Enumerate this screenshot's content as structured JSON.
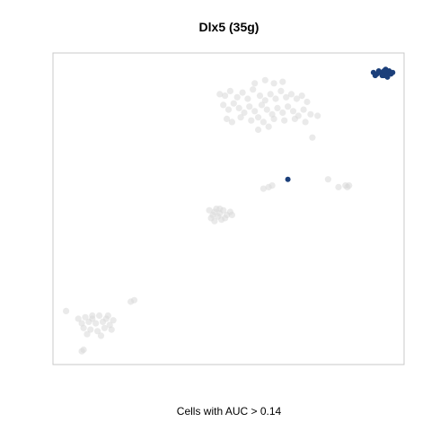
{
  "chart_data": {
    "type": "scatter",
    "title": "Dlx5 (35g)",
    "xlabel": "Cells with AUC > 0.14",
    "ylabel": "",
    "axes_shown": false,
    "grid": false,
    "legend": "none",
    "xlim": [
      0,
      100
    ],
    "ylim": [
      0,
      100
    ],
    "colors": {
      "background_points": "#d9d9d9",
      "highlight_points": "#1b3f7a",
      "frame": "#c8c8c8"
    },
    "series": [
      {
        "values": [
          [
            47.5,
            87.0
          ],
          [
            49.0,
            86.5
          ],
          [
            50.5,
            88.0
          ],
          [
            52.5,
            86.0
          ],
          [
            54.0,
            87.5
          ],
          [
            55.5,
            85.5
          ],
          [
            57.0,
            88.5
          ],
          [
            59.0,
            86.5
          ],
          [
            60.5,
            85.0
          ],
          [
            62.0,
            87.0
          ],
          [
            63.5,
            85.5
          ],
          [
            65.0,
            88.0
          ],
          [
            66.5,
            86.0
          ],
          [
            68.0,
            87.0
          ],
          [
            69.5,
            85.5
          ],
          [
            71.0,
            86.5
          ],
          [
            72.5,
            84.5
          ],
          [
            48.5,
            83.5
          ],
          [
            50.0,
            82.0
          ],
          [
            51.5,
            84.0
          ],
          [
            53.0,
            82.5
          ],
          [
            54.5,
            81.0
          ],
          [
            56.0,
            83.0
          ],
          [
            57.5,
            81.5
          ],
          [
            59.5,
            83.5
          ],
          [
            61.0,
            82.0
          ],
          [
            62.5,
            80.5
          ],
          [
            64.0,
            82.5
          ],
          [
            65.5,
            81.0
          ],
          [
            67.0,
            83.0
          ],
          [
            68.5,
            81.5
          ],
          [
            70.0,
            80.0
          ],
          [
            71.5,
            82.0
          ],
          [
            73.5,
            80.5
          ],
          [
            49.5,
            79.0
          ],
          [
            51.0,
            78.0
          ],
          [
            53.5,
            79.5
          ],
          [
            56.5,
            78.5
          ],
          [
            58.5,
            79.5
          ],
          [
            60.0,
            78.0
          ],
          [
            63.0,
            79.0
          ],
          [
            66.0,
            78.5
          ],
          [
            69.0,
            79.0
          ],
          [
            72.0,
            78.0
          ],
          [
            75.5,
            80.0
          ],
          [
            57.5,
            90.5
          ],
          [
            60.5,
            91.5
          ],
          [
            63.0,
            90.5
          ],
          [
            65.5,
            91.0
          ],
          [
            58.5,
            75.5
          ],
          [
            61.5,
            76.5
          ],
          [
            74.0,
            73.0
          ],
          [
            44.5,
            49.5
          ],
          [
            45.5,
            48.0
          ],
          [
            46.5,
            50.0
          ],
          [
            47.5,
            48.5
          ],
          [
            48.5,
            49.5
          ],
          [
            49.5,
            48.0
          ],
          [
            45.0,
            47.0
          ],
          [
            46.0,
            46.0
          ],
          [
            47.0,
            47.5
          ],
          [
            48.0,
            46.5
          ],
          [
            49.0,
            47.0
          ],
          [
            50.5,
            49.0
          ],
          [
            51.0,
            48.0
          ],
          [
            46.0,
            49.0
          ],
          [
            47.5,
            50.0
          ],
          [
            60.0,
            56.5
          ],
          [
            61.5,
            57.0
          ],
          [
            62.5,
            57.5
          ],
          [
            78.5,
            59.5
          ],
          [
            81.5,
            57.0
          ],
          [
            83.5,
            57.5
          ],
          [
            84.0,
            57.0
          ],
          [
            84.5,
            57.5
          ],
          [
            3.5,
            17.0
          ],
          [
            7.0,
            14.5
          ],
          [
            8.0,
            13.0
          ],
          [
            9.0,
            15.0
          ],
          [
            10.0,
            13.5
          ],
          [
            11.0,
            14.5
          ],
          [
            12.0,
            13.0
          ],
          [
            13.0,
            15.5
          ],
          [
            14.0,
            13.5
          ],
          [
            15.0,
            14.5
          ],
          [
            16.0,
            12.5
          ],
          [
            17.0,
            14.0
          ],
          [
            8.5,
            11.5
          ],
          [
            10.5,
            11.0
          ],
          [
            12.5,
            10.5
          ],
          [
            14.5,
            11.5
          ],
          [
            16.5,
            11.0
          ],
          [
            9.5,
            9.5
          ],
          [
            13.5,
            9.0
          ],
          [
            11.0,
            15.5
          ],
          [
            15.5,
            15.5
          ],
          [
            22.0,
            20.0
          ],
          [
            23.0,
            20.5
          ],
          [
            8.5,
            4.5
          ],
          [
            8.0,
            4.0
          ]
        ]
      },
      {
        "values": [
          [
            91.5,
            94.0
          ],
          [
            92.5,
            93.5
          ],
          [
            93.5,
            94.0
          ],
          [
            94.5,
            93.0
          ],
          [
            95.5,
            93.5
          ],
          [
            96.0,
            94.5
          ],
          [
            95.0,
            95.0
          ],
          [
            94.0,
            93.0
          ],
          [
            96.5,
            93.5
          ],
          [
            93.0,
            94.5
          ],
          [
            92.0,
            93.0
          ],
          [
            95.5,
            92.5
          ],
          [
            97.0,
            94.0
          ],
          [
            94.5,
            94.5
          ],
          [
            67.0,
            59.5
          ]
        ]
      }
    ]
  }
}
